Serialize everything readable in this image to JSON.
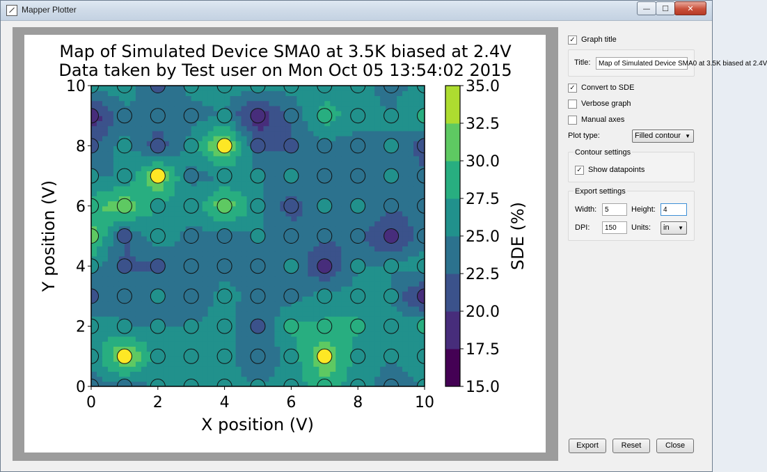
{
  "window": {
    "title": "Mapper Plotter",
    "controls": {
      "minimize": "—",
      "maximize": "☐",
      "close": "✕"
    }
  },
  "plot": {
    "title_line1": "Map of Simulated Device SMA0 at 3.5K biased at 2.4V",
    "title_line2": "Data taken by Test user on Mon Oct 05 13:54:02 2015",
    "x_ticks": [
      "0",
      "2",
      "4",
      "6",
      "8",
      "10"
    ],
    "y_ticks": [
      "0",
      "2",
      "4",
      "6",
      "8",
      "10"
    ],
    "colorbar_ticks": [
      "15.0",
      "17.5",
      "20.0",
      "22.5",
      "25.0",
      "27.5",
      "30.0",
      "32.5",
      "35.0"
    ]
  },
  "chart_data": {
    "type": "heatmap",
    "plot_type": "filled contour",
    "title": "Map of Simulated Device SMA0 at 3.5K biased at 2.4V\nData taken by Test user on Mon Oct 05 13:54:02 2015",
    "xlabel": "X position (V)",
    "ylabel": "Y position (V)",
    "colorbar_label": "SDE (%)",
    "colormap": "viridis",
    "xlim": [
      0,
      10
    ],
    "ylim": [
      0,
      10
    ],
    "zlim": [
      15,
      35
    ],
    "levels": [
      15,
      17.5,
      20,
      22.5,
      25,
      27.5,
      30,
      32.5,
      35
    ],
    "show_datapoints": true,
    "x": [
      0,
      1,
      2,
      3,
      4,
      5,
      6,
      7,
      8,
      9,
      10
    ],
    "y": [
      0,
      1,
      2,
      3,
      4,
      5,
      6,
      7,
      8,
      9,
      10
    ],
    "z": [
      [
        24,
        24,
        25,
        25,
        26,
        25,
        26,
        29,
        26,
        24,
        25
      ],
      [
        25,
        34,
        26,
        26,
        26,
        23,
        26,
        33,
        26,
        25,
        26
      ],
      [
        27,
        25,
        25,
        25,
        26,
        22,
        28,
        28,
        28,
        26,
        28
      ],
      [
        22,
        24,
        25,
        23,
        26,
        24,
        24,
        26,
        26,
        25,
        18
      ],
      [
        26,
        22,
        22,
        24,
        24,
        24,
        25,
        19,
        25,
        25,
        27
      ],
      [
        31,
        22,
        27,
        24,
        24,
        25,
        24,
        23,
        23,
        19,
        24
      ],
      [
        29,
        32,
        27,
        26,
        32,
        26,
        21,
        25,
        25,
        23,
        24
      ],
      [
        25,
        25,
        33,
        24,
        25,
        25,
        25,
        24,
        24,
        25,
        23
      ],
      [
        22,
        26,
        21,
        26,
        34,
        22,
        22,
        24,
        24,
        25,
        21
      ],
      [
        18,
        24,
        24,
        24,
        25,
        18,
        23,
        29,
        26,
        25,
        28
      ],
      [
        26,
        27,
        22,
        26,
        26,
        26,
        26,
        26,
        26,
        24,
        26
      ]
    ]
  },
  "settings": {
    "graph_title_label": "Graph title",
    "graph_title_checked": true,
    "title_field_label": "Title:",
    "title_value": "Map of Simulated Device SMA0 at 3.5K biased at 2.4V",
    "convert_sde_label": "Convert to SDE",
    "convert_sde_checked": true,
    "verbose_label": "Verbose graph",
    "verbose_checked": false,
    "manual_axes_label": "Manual axes",
    "manual_axes_checked": false,
    "plot_type_label": "Plot type:",
    "plot_type_value": "Filled contour",
    "contour_group_title": "Contour settings",
    "show_datapoints_label": "Show datapoints",
    "show_datapoints_checked": true,
    "export_group_title": "Export settings",
    "width_label": "Width:",
    "width_value": "5",
    "height_label": "Height:",
    "height_value": "4",
    "dpi_label": "DPI:",
    "dpi_value": "150",
    "units_label": "Units:",
    "units_value": "in"
  },
  "buttons": {
    "export": "Export",
    "reset": "Reset",
    "close": "Close"
  }
}
